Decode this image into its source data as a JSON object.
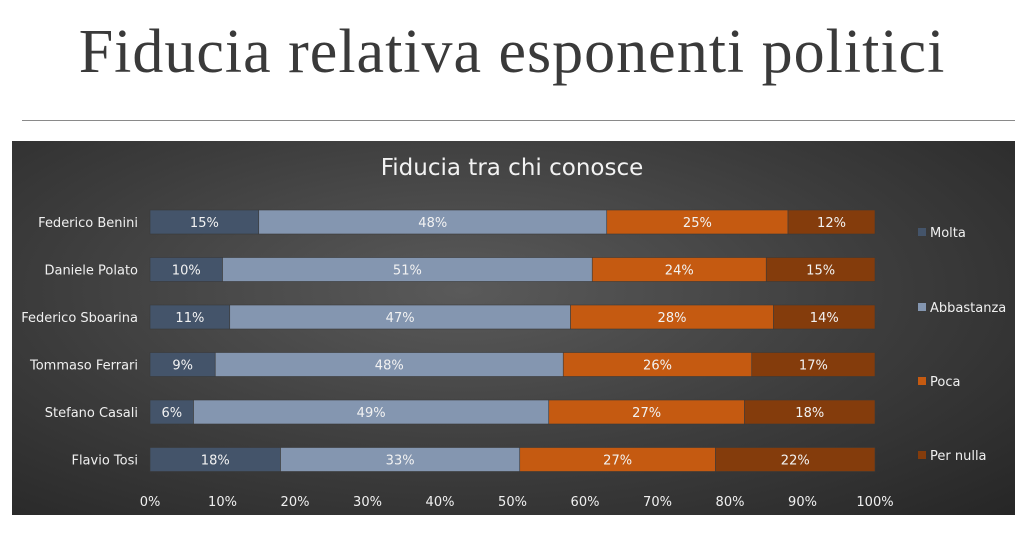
{
  "slide": {
    "title": "Fiducia relativa esponenti politici"
  },
  "chart_data": {
    "type": "bar",
    "orientation": "horizontal",
    "stacked": "percent",
    "title": "Fiducia tra chi conosce",
    "categories": [
      "Federico Benini",
      "Daniele Polato",
      "Federico Sboarina",
      "Tommaso Ferrari",
      "Stefano Casali",
      "Flavio Tosi"
    ],
    "series": [
      {
        "name": "Molta",
        "values": [
          15,
          10,
          11,
          9,
          6,
          18
        ],
        "color": "#44546a"
      },
      {
        "name": "Abbastanza",
        "values": [
          48,
          51,
          47,
          48,
          49,
          33
        ],
        "color": "#8496b0"
      },
      {
        "name": "Poca",
        "values": [
          25,
          24,
          28,
          26,
          27,
          27
        ],
        "color": "#c55a11"
      },
      {
        "name": "Per nulla",
        "values": [
          12,
          15,
          14,
          17,
          18,
          22
        ],
        "color": "#843c0c"
      }
    ],
    "data_labels": [
      [
        "15%",
        "10%",
        "11%",
        "9%",
        "6%",
        "18%"
      ],
      [
        "48%",
        "51%",
        "47%",
        "48%",
        "49%",
        "33%"
      ],
      [
        "25%",
        "24%",
        "28%",
        "26%",
        "27%",
        "27%"
      ],
      [
        "12%",
        "15%",
        "14%",
        "17%",
        "18%",
        "22%"
      ]
    ],
    "xlim": [
      0,
      100
    ],
    "xticks": [
      "0%",
      "10%",
      "20%",
      "30%",
      "40%",
      "50%",
      "60%",
      "70%",
      "80%",
      "90%",
      "100%"
    ],
    "xlabel": "",
    "ylabel": "",
    "legend": "right",
    "grid": false
  }
}
